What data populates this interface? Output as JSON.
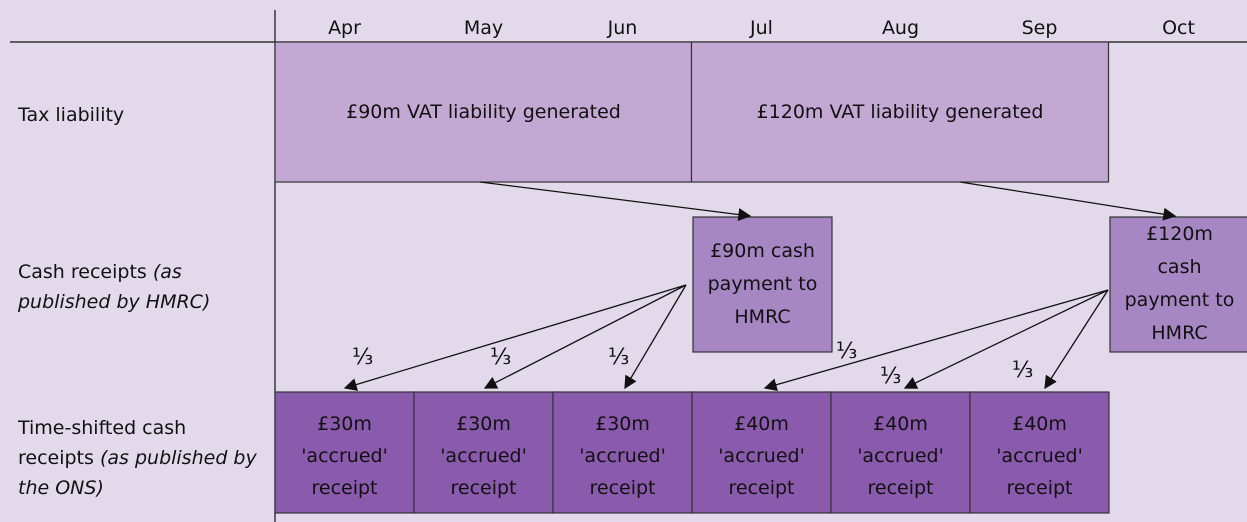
{
  "months": [
    "Apr",
    "May",
    "Jun",
    "Jul",
    "Aug",
    "Sep",
    "Oct"
  ],
  "rows": [
    {
      "label": "Tax liability"
    },
    {
      "label": "Cash receipts",
      "note": "(as published by HMRC)"
    },
    {
      "label": "Time-shifted cash receipts",
      "note": "(as published by the ONS)"
    }
  ],
  "liability_boxes": [
    {
      "text": "£90m VAT liability generated"
    },
    {
      "text": "£120m VAT liability generated"
    }
  ],
  "cash_boxes": [
    {
      "lines": [
        "£90m cash",
        "payment to",
        "HMRC"
      ]
    },
    {
      "lines": [
        "£120m",
        "cash",
        "payment to",
        "HMRC"
      ]
    }
  ],
  "accrued_boxes": [
    {
      "lines": [
        "£30m",
        "'accrued'",
        "receipt"
      ]
    },
    {
      "lines": [
        "£30m",
        "'accrued'",
        "receipt"
      ]
    },
    {
      "lines": [
        "£30m",
        "'accrued'",
        "receipt"
      ]
    },
    {
      "lines": [
        "£40m",
        "'accrued'",
        "receipt"
      ]
    },
    {
      "lines": [
        "£40m",
        "'accrued'",
        "receipt"
      ]
    },
    {
      "lines": [
        "£40m",
        "'accrued'",
        "receipt"
      ]
    }
  ],
  "split_labels": [
    "⅓",
    "⅓",
    "⅓",
    "⅓",
    "⅓",
    "⅓"
  ]
}
